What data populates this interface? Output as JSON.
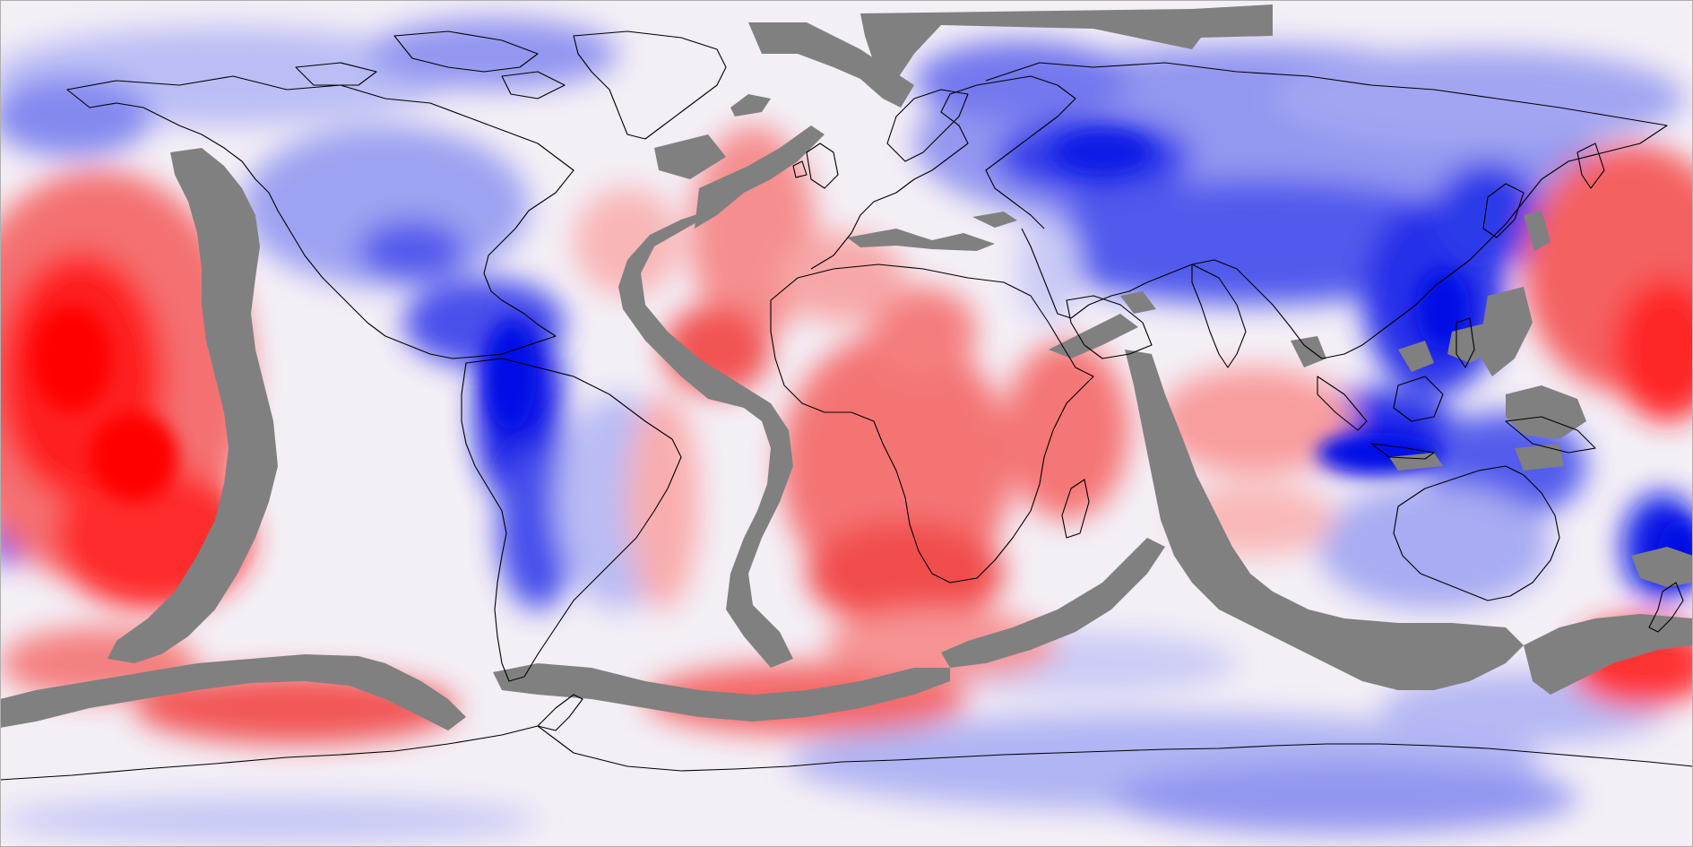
{
  "map": {
    "projection": "equirectangular",
    "center_longitude": 0,
    "style": "filled-contour anomaly field with coastlines",
    "colors": {
      "strong_positive": "#ff0000",
      "positive": "#f56c6c",
      "weak_positive": "#fbc3c3",
      "neutral": "#f5f0f5",
      "weak_negative": "#c6c8f6",
      "negative": "#6d72ee",
      "strong_negative": "#0011e6",
      "masked": "#808080",
      "coastline": "#000000"
    },
    "legend": null,
    "title": null
  }
}
